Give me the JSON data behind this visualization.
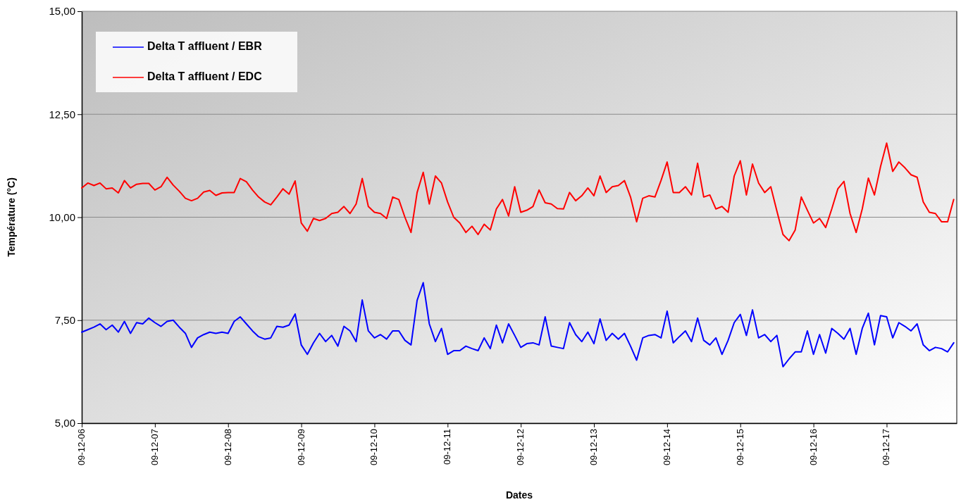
{
  "chart_data": {
    "type": "line",
    "xlabel": "Dates",
    "ylabel": "Température (°C)",
    "x": [
      "--12-06T00:00",
      "--12-06T02:00",
      "--12-06T04:00",
      "--12-06T06:00",
      "--12-06T08:00",
      "--12-06T10:00",
      "--12-06T12:00",
      "--12-06T14:00",
      "--12-06T16:00",
      "--12-06T18:00",
      "--12-06T20:00",
      "--12-06T22:00",
      "--12-07T00:00",
      "--12-07T02:00",
      "--12-07T04:00",
      "--12-07T06:00",
      "--12-07T08:00",
      "--12-07T10:00",
      "--12-07T12:00",
      "--12-07T14:00",
      "--12-07T16:00",
      "--12-07T18:00",
      "--12-07T20:00",
      "--12-07T22:00",
      "--12-08T00:00",
      "--12-08T02:00",
      "--12-08T04:00",
      "--12-08T06:00",
      "--12-08T08:00",
      "--12-08T10:00",
      "--12-08T12:00",
      "--12-08T14:00",
      "--12-08T16:00",
      "--12-08T18:00",
      "--12-08T20:00",
      "--12-08T22:00",
      "--12-09T00:00",
      "--12-09T02:00",
      "--12-09T04:00",
      "--12-09T06:00",
      "--12-09T08:00",
      "--12-09T10:00",
      "--12-09T12:00",
      "--12-09T14:00",
      "--12-09T16:00",
      "--12-09T18:00",
      "--12-09T20:00",
      "--12-09T22:00",
      "--12-10T00:00",
      "--12-10T02:00",
      "--12-10T04:00",
      "--12-10T06:00",
      "--12-10T08:00",
      "--12-10T10:00",
      "--12-10T12:00",
      "--12-10T14:00",
      "--12-10T16:00",
      "--12-10T18:00",
      "--12-10T20:00",
      "--12-10T22:00",
      "--12-11T00:00",
      "--12-11T02:00",
      "--12-11T04:00",
      "--12-11T06:00",
      "--12-11T08:00",
      "--12-11T10:00",
      "--12-11T12:00",
      "--12-11T14:00",
      "--12-11T16:00",
      "--12-11T18:00",
      "--12-11T20:00",
      "--12-11T22:00",
      "--12-12T00:00",
      "--12-12T02:00",
      "--12-12T04:00",
      "--12-12T06:00",
      "--12-12T08:00",
      "--12-12T10:00",
      "--12-12T12:00",
      "--12-12T14:00",
      "--12-12T16:00",
      "--12-12T18:00",
      "--12-12T20:00",
      "--12-12T22:00",
      "--12-13T00:00",
      "--12-13T02:00",
      "--12-13T04:00",
      "--12-13T06:00",
      "--12-13T08:00",
      "--12-13T10:00",
      "--12-13T12:00",
      "--12-13T14:00",
      "--12-13T16:00",
      "--12-13T18:00",
      "--12-13T20:00",
      "--12-13T22:00",
      "--12-14T00:00",
      "--12-14T02:00",
      "--12-14T04:00",
      "--12-14T06:00",
      "--12-14T08:00",
      "--12-14T10:00",
      "--12-14T12:00",
      "--12-14T14:00",
      "--12-14T16:00",
      "--12-14T18:00",
      "--12-14T20:00",
      "--12-14T22:00",
      "--12-15T00:00",
      "--12-15T02:00",
      "--12-15T04:00",
      "--12-15T06:00",
      "--12-15T08:00",
      "--12-15T10:00",
      "--12-15T12:00",
      "--12-15T14:00",
      "--12-15T16:00",
      "--12-15T18:00",
      "--12-15T20:00",
      "--12-15T22:00",
      "--12-16T00:00",
      "--12-16T02:00",
      "--12-16T04:00",
      "--12-16T06:00",
      "--12-16T08:00",
      "--12-16T10:00",
      "--12-16T12:00",
      "--12-16T14:00",
      "--12-16T16:00",
      "--12-16T18:00",
      "--12-16T20:00",
      "--12-16T22:00",
      "--12-17T00:00",
      "--12-17T02:00",
      "--12-17T04:00",
      "--12-17T06:00",
      "--12-17T08:00",
      "--12-17T10:00",
      "--12-17T12:00",
      "--12-17T14:00",
      "--12-17T16:00",
      "--12-17T18:00",
      "--12-17T20:00",
      "--12-17T22:00"
    ],
    "series": [
      {
        "name": "Delta T affluent / EBR",
        "color": "#0000ff",
        "values": [
          7.21,
          7.27,
          7.33,
          7.41,
          7.27,
          7.38,
          7.21,
          7.47,
          7.18,
          7.44,
          7.41,
          7.55,
          7.44,
          7.35,
          7.47,
          7.5,
          7.33,
          7.18,
          6.84,
          7.07,
          7.15,
          7.21,
          7.18,
          7.21,
          7.18,
          7.47,
          7.58,
          7.41,
          7.24,
          7.1,
          7.04,
          7.07,
          7.35,
          7.33,
          7.38,
          7.65,
          6.9,
          6.67,
          6.95,
          7.18,
          6.98,
          7.13,
          6.87,
          7.35,
          7.24,
          6.98,
          7.99,
          7.24,
          7.07,
          7.15,
          7.04,
          7.24,
          7.24,
          7.01,
          6.9,
          7.98,
          8.41,
          7.41,
          6.98,
          7.3,
          6.67,
          6.76,
          6.76,
          6.87,
          6.81,
          6.76,
          7.07,
          6.81,
          7.38,
          6.95,
          7.41,
          7.13,
          6.84,
          6.93,
          6.95,
          6.9,
          7.58,
          6.87,
          6.84,
          6.81,
          7.44,
          7.15,
          6.98,
          7.21,
          6.93,
          7.53,
          7.01,
          7.18,
          7.04,
          7.18,
          6.87,
          6.53,
          7.07,
          7.13,
          7.15,
          7.07,
          7.72,
          6.95,
          7.1,
          7.24,
          6.98,
          7.55,
          7.01,
          6.9,
          7.07,
          6.67,
          7.01,
          7.44,
          7.64,
          7.13,
          7.75,
          7.07,
          7.15,
          6.98,
          7.13,
          6.37,
          6.56,
          6.73,
          6.73,
          7.24,
          6.67,
          7.15,
          6.7,
          7.3,
          7.18,
          7.04,
          7.3,
          6.67,
          7.3,
          7.67,
          6.9,
          7.61,
          7.58,
          7.07,
          7.44,
          7.35,
          7.24,
          7.41,
          6.9,
          6.76,
          6.84,
          6.81,
          6.73,
          6.95
        ]
      },
      {
        "name": "Delta T affluent / EDC",
        "color": "#ff0000",
        "values": [
          10.71,
          10.83,
          10.77,
          10.83,
          10.69,
          10.71,
          10.59,
          10.89,
          10.71,
          10.8,
          10.82,
          10.82,
          10.66,
          10.74,
          10.97,
          10.78,
          10.63,
          10.46,
          10.4,
          10.46,
          10.61,
          10.65,
          10.53,
          10.59,
          10.6,
          10.6,
          10.94,
          10.86,
          10.66,
          10.49,
          10.37,
          10.3,
          10.49,
          10.69,
          10.56,
          10.88,
          9.86,
          9.66,
          9.97,
          9.92,
          9.97,
          10.09,
          10.12,
          10.26,
          10.09,
          10.32,
          10.94,
          10.26,
          10.12,
          10.09,
          9.97,
          10.49,
          10.43,
          10.0,
          9.63,
          10.6,
          11.09,
          10.32,
          11.0,
          10.83,
          10.37,
          10.0,
          9.86,
          9.63,
          9.78,
          9.58,
          9.83,
          9.69,
          10.2,
          10.43,
          10.03,
          10.74,
          10.12,
          10.17,
          10.26,
          10.66,
          10.35,
          10.32,
          10.21,
          10.2,
          10.6,
          10.4,
          10.52,
          10.71,
          10.52,
          11.0,
          10.6,
          10.74,
          10.77,
          10.89,
          10.49,
          9.89,
          10.46,
          10.52,
          10.49,
          10.89,
          11.34,
          10.6,
          10.6,
          10.74,
          10.54,
          11.31,
          10.49,
          10.54,
          10.2,
          10.26,
          10.12,
          11.0,
          11.37,
          10.54,
          11.29,
          10.83,
          10.6,
          10.74,
          10.15,
          9.58,
          9.43,
          9.69,
          10.49,
          10.17,
          9.86,
          9.97,
          9.75,
          10.2,
          10.69,
          10.87,
          10.09,
          9.63,
          10.2,
          10.95,
          10.54,
          11.23,
          11.8,
          11.11,
          11.34,
          11.2,
          11.03,
          10.97,
          10.37,
          10.12,
          10.09,
          9.89,
          9.89,
          10.43
        ]
      }
    ],
    "xlim": [
      "--12-06T00:00",
      "--12-17T23:00"
    ],
    "xticks": [
      {
        "value": "--12-06",
        "label": "09-12-06"
      },
      {
        "value": "--12-07",
        "label": "09-12-07"
      },
      {
        "value": "--12-08",
        "label": "09-12-08"
      },
      {
        "value": "--12-09",
        "label": "09-12-09"
      },
      {
        "value": "--12-10",
        "label": "09-12-10"
      },
      {
        "value": "--12-11",
        "label": "09-12-11"
      },
      {
        "value": "--12-12",
        "label": "09-12-12"
      },
      {
        "value": "--12-13",
        "label": "09-12-13"
      },
      {
        "value": "--12-14",
        "label": "09-12-14"
      },
      {
        "value": "--12-15",
        "label": "09-12-15"
      },
      {
        "value": "--12-16",
        "label": "09-12-16"
      },
      {
        "value": "--12-17",
        "label": "09-12-17"
      }
    ],
    "ylim": [
      5,
      15
    ],
    "yticks": [
      {
        "value": 5,
        "label": "5,00"
      },
      {
        "value": 7.5,
        "label": "7,50"
      },
      {
        "value": 10,
        "label": "10,00"
      },
      {
        "value": 12.5,
        "label": "12,50"
      },
      {
        "value": 15,
        "label": "15,00"
      }
    ],
    "grid": "y",
    "legend": "top left",
    "marker": "none",
    "line_style": "solid"
  }
}
